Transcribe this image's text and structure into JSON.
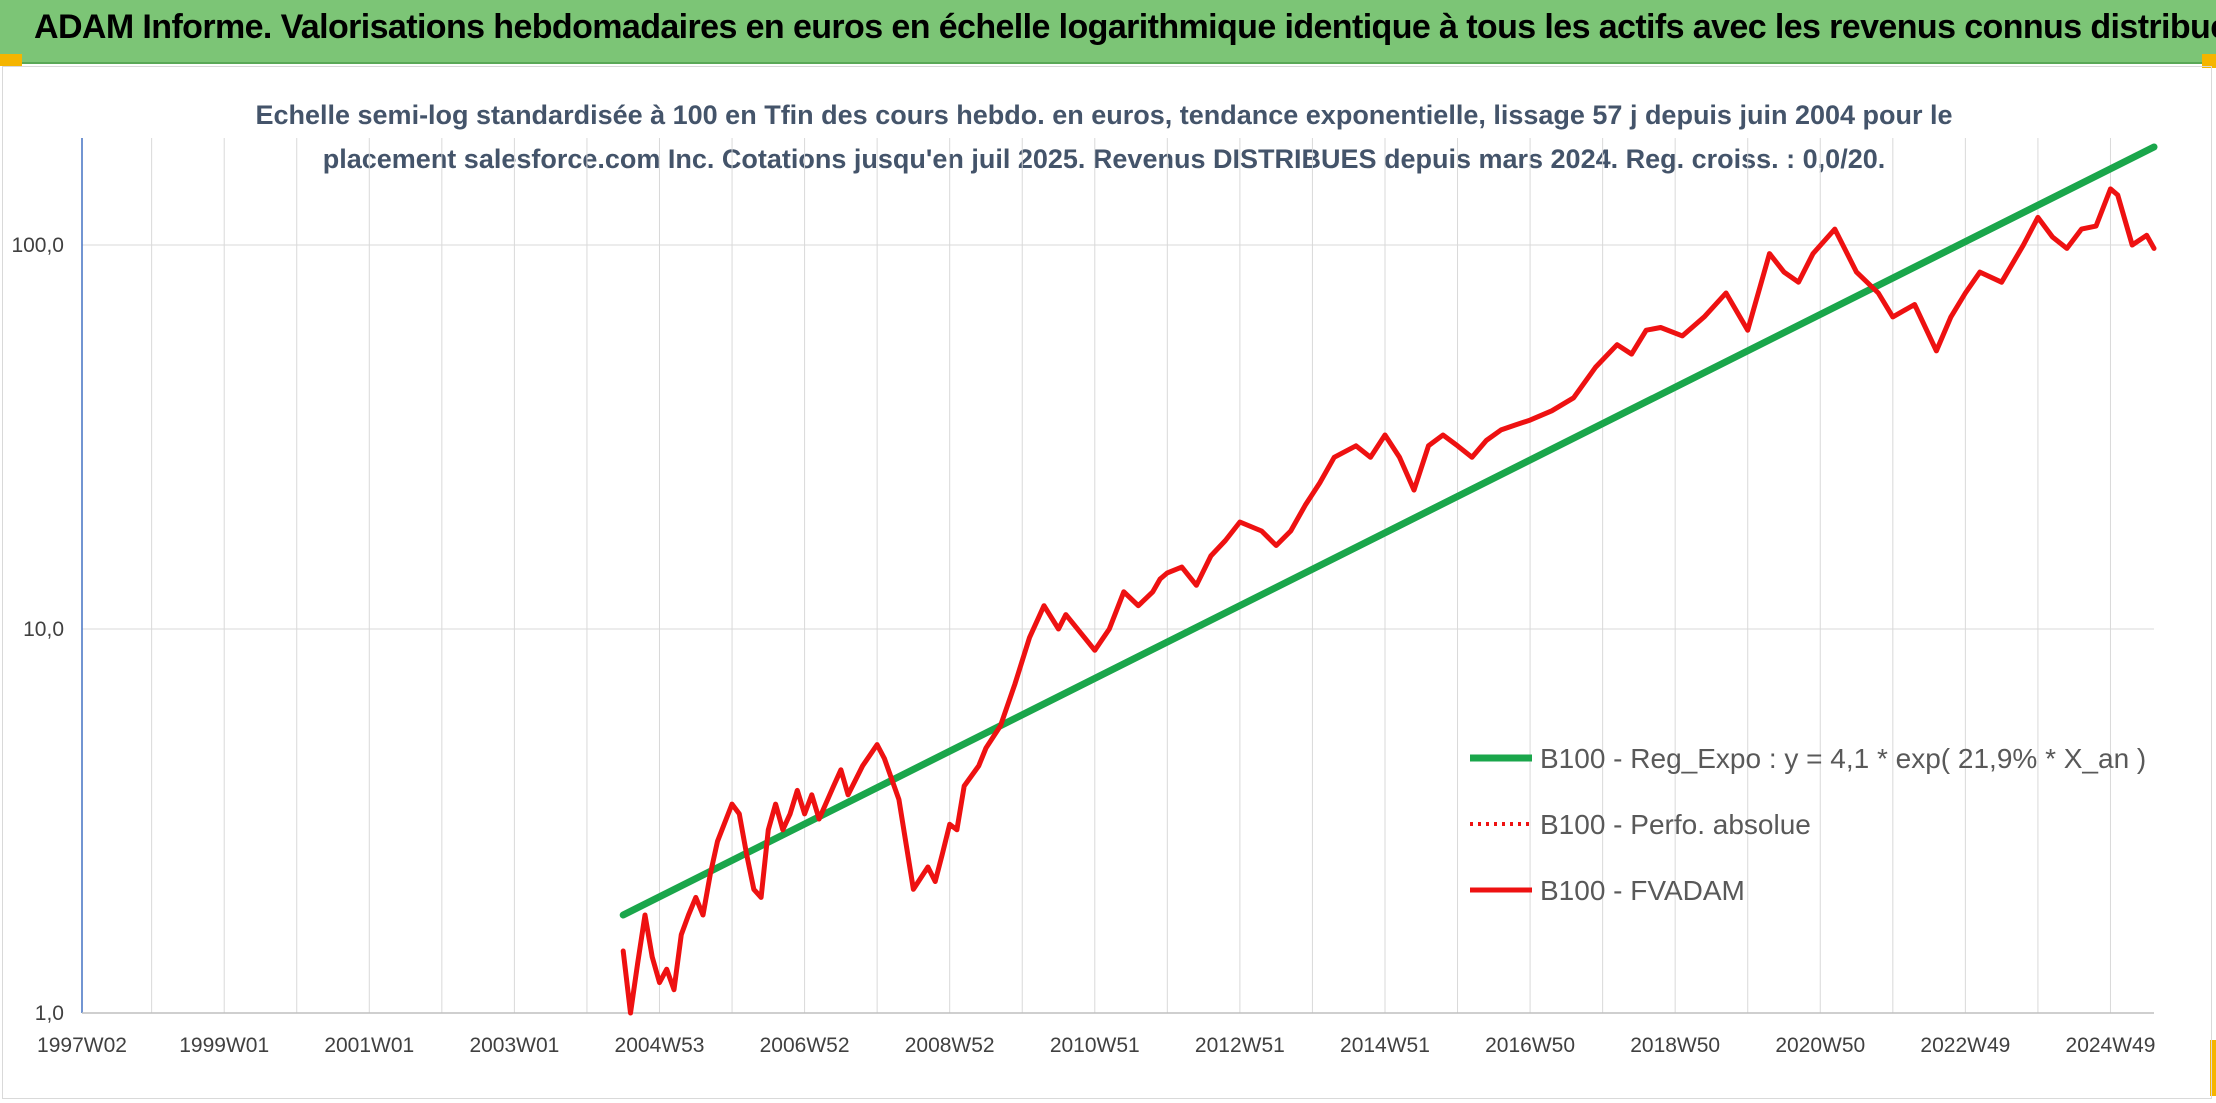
{
  "banner": {
    "title": "ADAM Informe. Valorisations hebdomadaires en euros en échelle logarithmique identique à tous les actifs avec les revenus connus distribués"
  },
  "colors": {
    "banner_bg": "#7cc576",
    "accent_corner": "#f5b500",
    "trend": "#1aa64b",
    "fvadam": "#ee1111",
    "grid": "#d9d9d9",
    "axis": "#4472c4"
  },
  "chart_data": {
    "type": "line",
    "title_lines": [
      "Echelle semi-log standardisée à 100 en Tfin des cours hebdo. en euros, tendance exponentielle, lissage 57 j depuis juin 2004 pour le",
      "placement salesforce.com Inc. Cotations jusqu'en juil 2025. Revenus DISTRIBUES depuis mars 2024. Reg. croiss. : 0,0/20."
    ],
    "y_scale": "log",
    "ylim": [
      1,
      190
    ],
    "y_ticks": [
      {
        "value": 1,
        "label": "1,0"
      },
      {
        "value": 10,
        "label": "10,0"
      },
      {
        "value": 100,
        "label": "100,0"
      }
    ],
    "xlim": [
      1997.04,
      2025.6
    ],
    "x_ticks": [
      {
        "value": 1997.04,
        "label": "1997W02"
      },
      {
        "value": 1999.0,
        "label": "1999W01"
      },
      {
        "value": 2001.0,
        "label": "2001W01"
      },
      {
        "value": 2003.0,
        "label": "2003W01"
      },
      {
        "value": 2005.0,
        "label": "2004W53"
      },
      {
        "value": 2007.0,
        "label": "2006W52"
      },
      {
        "value": 2009.0,
        "label": "2008W52"
      },
      {
        "value": 2011.0,
        "label": "2010W51"
      },
      {
        "value": 2013.0,
        "label": "2012W51"
      },
      {
        "value": 2015.0,
        "label": "2014W51"
      },
      {
        "value": 2017.0,
        "label": "2016W50"
      },
      {
        "value": 2019.0,
        "label": "2018W50"
      },
      {
        "value": 2021.0,
        "label": "2020W50"
      },
      {
        "value": 2023.0,
        "label": "2022W49"
      },
      {
        "value": 2025.0,
        "label": "2024W49"
      }
    ],
    "legend_position": "bottom-right",
    "series": [
      {
        "name": "B100 - Reg_Expo : y = 4,1 * exp( 21,9% *  X_an )",
        "style": "solid-thick",
        "color": "#1aa64b",
        "x": [
          2004.5,
          2025.6
        ],
        "y": [
          1.8,
          180
        ]
      },
      {
        "name": "B100 - Perfo. absolue",
        "style": "dotted",
        "color": "#ee1111",
        "x": [],
        "y": []
      },
      {
        "name": "B100 - FVADAM",
        "style": "solid",
        "color": "#ee1111",
        "x": [
          2004.5,
          2004.6,
          2004.7,
          2004.8,
          2004.9,
          2005.0,
          2005.1,
          2005.2,
          2005.3,
          2005.4,
          2005.5,
          2005.6,
          2005.7,
          2005.8,
          2006.0,
          2006.1,
          2006.2,
          2006.3,
          2006.4,
          2006.5,
          2006.6,
          2006.7,
          2006.8,
          2006.9,
          2007.0,
          2007.1,
          2007.2,
          2007.4,
          2007.5,
          2007.6,
          2007.8,
          2008.0,
          2008.1,
          2008.3,
          2008.5,
          2008.7,
          2008.8,
          2008.9,
          2009.0,
          2009.1,
          2009.2,
          2009.4,
          2009.5,
          2009.7,
          2009.9,
          2010.1,
          2010.3,
          2010.5,
          2010.6,
          2010.8,
          2011.0,
          2011.2,
          2011.4,
          2011.6,
          2011.8,
          2011.9,
          2012.0,
          2012.2,
          2012.4,
          2012.6,
          2012.8,
          2013.0,
          2013.3,
          2013.5,
          2013.7,
          2013.9,
          2014.1,
          2014.3,
          2014.6,
          2014.8,
          2015.0,
          2015.2,
          2015.4,
          2015.6,
          2015.8,
          2016.0,
          2016.2,
          2016.4,
          2016.6,
          2016.8,
          2017.0,
          2017.3,
          2017.6,
          2017.9,
          2018.2,
          2018.4,
          2018.6,
          2018.8,
          2019.1,
          2019.4,
          2019.7,
          2020.0,
          2020.3,
          2020.5,
          2020.7,
          2020.9,
          2021.2,
          2021.5,
          2021.8,
          2022.0,
          2022.3,
          2022.6,
          2022.8,
          2023.0,
          2023.2,
          2023.5,
          2023.8,
          2024.0,
          2024.2,
          2024.4,
          2024.6,
          2024.8,
          2025.0,
          2025.1,
          2025.3,
          2025.5,
          2025.6
        ],
        "y": [
          1.45,
          1.0,
          1.35,
          1.8,
          1.4,
          1.2,
          1.3,
          1.15,
          1.6,
          1.8,
          2.0,
          1.8,
          2.3,
          2.8,
          3.5,
          3.3,
          2.6,
          2.1,
          2.0,
          3.0,
          3.5,
          3.0,
          3.3,
          3.8,
          3.3,
          3.7,
          3.2,
          3.9,
          4.3,
          3.7,
          4.4,
          5.0,
          4.6,
          3.6,
          2.1,
          2.4,
          2.2,
          2.6,
          3.1,
          3.0,
          3.9,
          4.4,
          4.9,
          5.6,
          7.2,
          9.5,
          11.5,
          10.0,
          10.9,
          9.8,
          8.8,
          10.0,
          12.5,
          11.5,
          12.5,
          13.5,
          14.0,
          14.5,
          13.0,
          15.5,
          17.0,
          19.0,
          18.0,
          16.5,
          18.0,
          21.0,
          24.0,
          28.0,
          30.0,
          28.0,
          32.0,
          28.0,
          23.0,
          30.0,
          32.0,
          30.0,
          28.0,
          31.0,
          33.0,
          34.0,
          35.0,
          37.0,
          40.0,
          48.0,
          55.0,
          52.0,
          60.0,
          61.0,
          58.0,
          65.0,
          75.0,
          60.0,
          95.0,
          85.0,
          80.0,
          95.0,
          110.0,
          85.0,
          75.0,
          65.0,
          70.0,
          53.0,
          65.0,
          75.0,
          85.0,
          80.0,
          100.0,
          118.0,
          105.0,
          98.0,
          110.0,
          112.0,
          140.0,
          135.0,
          100.0,
          106.0,
          98.0
        ]
      }
    ]
  }
}
